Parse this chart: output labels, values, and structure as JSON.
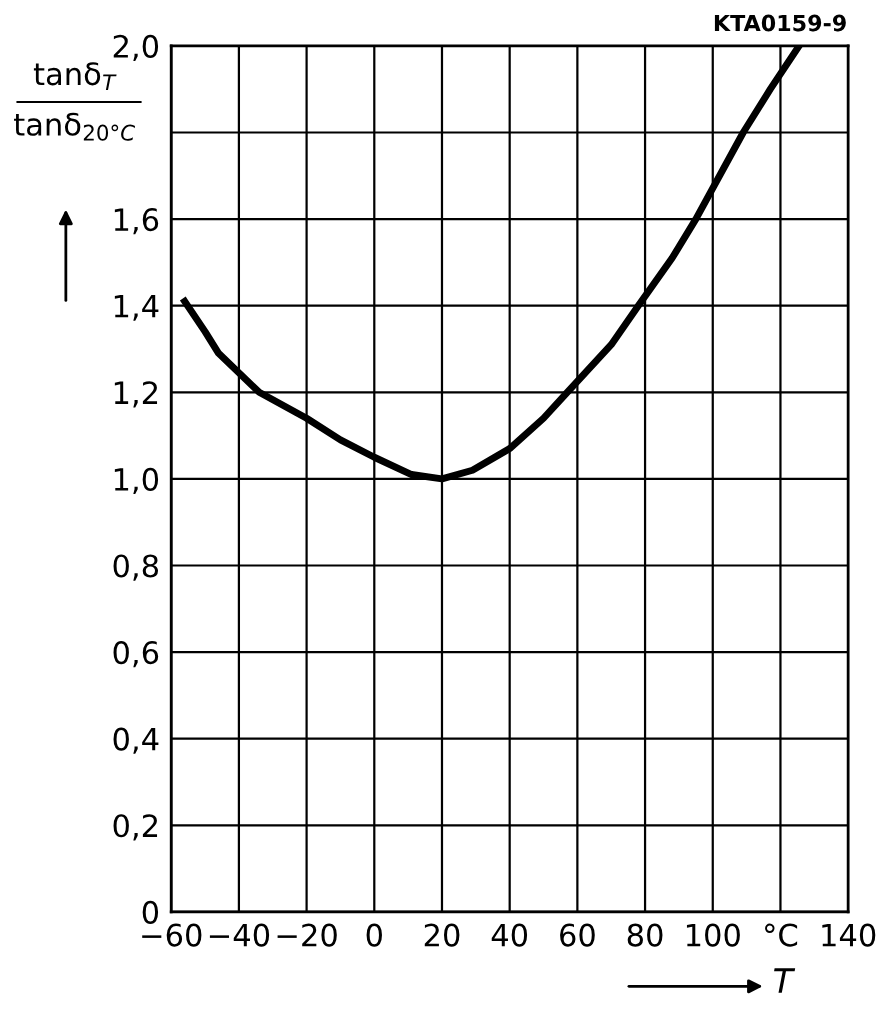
{
  "chart_data": {
    "type": "line",
    "x": [
      -56,
      -50,
      -46,
      -34,
      -20,
      -10,
      0,
      11,
      20,
      29,
      40,
      50,
      57,
      70,
      78,
      88,
      95,
      109,
      117,
      125.5
    ],
    "series": [
      {
        "color": "#000000",
        "values": [
          1.41,
          1.34,
          1.29,
          1.2,
          1.14,
          1.09,
          1.05,
          1.01,
          1.0,
          1.02,
          1.07,
          1.14,
          1.2,
          1.31,
          1.4,
          1.51,
          1.6,
          1.8,
          1.9,
          2.0
        ]
      }
    ],
    "xlabel": "T",
    "ylabel": "tanδ$_{T}$\ntanδ$_{20°C}$",
    "xlim": [
      -60,
      140
    ],
    "ylim": [
      0,
      2.0
    ],
    "xticks": [
      -60,
      -40,
      -20,
      0,
      20,
      40,
      60,
      80,
      100,
      {
        "value": 120,
        "label": "°C"
      },
      140
    ],
    "yticks": [
      0,
      {
        "value": 0.2,
        "label": "0,2"
      },
      {
        "value": 0.4,
        "label": "0,4"
      },
      {
        "value": 0.6,
        "label": "0,6"
      },
      {
        "value": 0.8,
        "label": "0,8"
      },
      {
        "value": 1.0,
        "label": "1,0"
      },
      {
        "value": 1.2,
        "label": "1,2"
      },
      {
        "value": 1.4,
        "label": "1,4"
      },
      {
        "value": 1.6,
        "label": "1,6"
      },
      {
        "value": 1.8,
        "label": null
      },
      {
        "value": 2.0,
        "label": "2,0"
      }
    ],
    "grid": true,
    "legend": false,
    "marker": "none",
    "line_style": "solid",
    "annotations": [
      "KTA0159-9"
    ]
  }
}
